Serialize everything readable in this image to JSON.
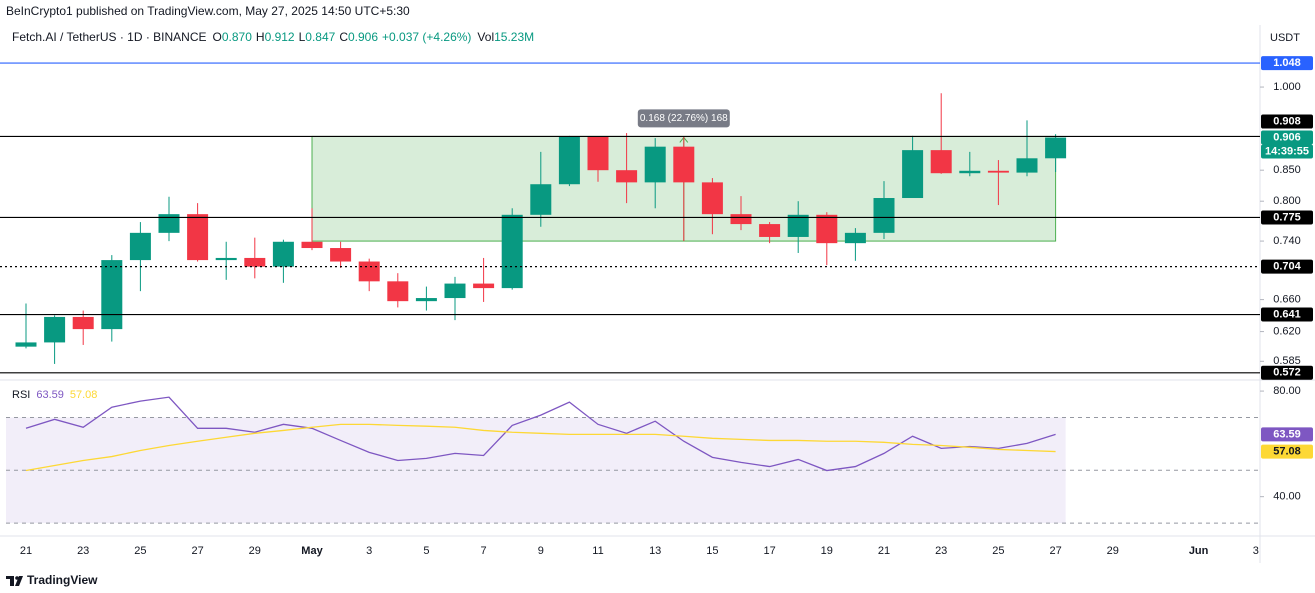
{
  "header": {
    "publisher": "BeInCrypto1 published on TradingView.com, May 27, 2025 14:50 UTC+5:30",
    "symbol": "Fetch.AI / TetherUS · 1D · BINANCE",
    "ohlc": [
      {
        "label": "O",
        "value": "0.870"
      },
      {
        "label": "H",
        "value": "0.912"
      },
      {
        "label": "L",
        "value": "0.847"
      },
      {
        "label": "C",
        "value": "0.906"
      }
    ],
    "change": "+0.037 (+4.26%)",
    "volume": {
      "label": "Vol",
      "value": "15.23M"
    }
  },
  "footer": {
    "brand": "TradingView"
  },
  "chart_data": [
    {
      "type": "candlestick",
      "currency": "USDT",
      "countdown": "14:39:55",
      "log_scale": true,
      "up_color": "#089981",
      "down_color": "#f23645",
      "categories": [
        "21",
        null,
        "23",
        null,
        "25",
        null,
        "27",
        null,
        "29",
        null,
        "May",
        null,
        "3",
        null,
        "5",
        null,
        "7",
        null,
        "9",
        null,
        "11",
        null,
        "13",
        null,
        "15",
        null,
        "17",
        null,
        "19",
        null,
        "21",
        null,
        "23",
        null,
        "25",
        null,
        "27",
        null,
        "29",
        null,
        null,
        "Jun",
        null,
        "3"
      ],
      "open": [
        0.602,
        0.607,
        0.638,
        0.623,
        0.713,
        0.752,
        0.78,
        0.713,
        0.716,
        0.704,
        0.739,
        0.73,
        0.711,
        0.684,
        0.658,
        0.662,
        0.681,
        0.675,
        0.779,
        0.827,
        0.907,
        0.85,
        0.83,
        0.89,
        0.83,
        0.78,
        0.765,
        0.746,
        0.779,
        0.737,
        0.752,
        0.805,
        0.884,
        0.845,
        0.849,
        0.846,
        0.87,
        null,
        null,
        null,
        null,
        null,
        null,
        null
      ],
      "high": [
        0.655,
        0.64,
        0.646,
        0.72,
        0.768,
        0.807,
        0.797,
        0.739,
        0.745,
        0.742,
        0.789,
        0.739,
        0.715,
        0.695,
        0.677,
        0.69,
        0.716,
        0.789,
        0.881,
        0.909,
        0.907,
        0.914,
        0.905,
        0.907,
        0.837,
        0.808,
        0.768,
        0.8,
        0.783,
        0.759,
        0.832,
        0.909,
        0.988,
        0.881,
        0.867,
        0.937,
        0.912,
        null,
        null,
        null,
        null,
        null,
        null,
        null
      ],
      "low": [
        0.6,
        0.582,
        0.604,
        0.608,
        0.671,
        0.74,
        0.711,
        0.686,
        0.688,
        0.682,
        0.727,
        0.702,
        0.671,
        0.65,
        0.646,
        0.634,
        0.657,
        0.673,
        0.761,
        0.824,
        0.831,
        0.797,
        0.789,
        0.74,
        0.75,
        0.756,
        0.737,
        0.723,
        0.706,
        0.712,
        0.743,
        0.805,
        0.844,
        0.84,
        0.794,
        0.84,
        0.847,
        null,
        null,
        null,
        null,
        null,
        null,
        null
      ],
      "close": [
        0.607,
        0.638,
        0.623,
        0.713,
        0.752,
        0.78,
        0.713,
        0.716,
        0.704,
        0.739,
        0.73,
        0.711,
        0.684,
        0.658,
        0.662,
        0.681,
        0.675,
        0.779,
        0.827,
        0.907,
        0.85,
        0.83,
        0.89,
        0.83,
        0.78,
        0.765,
        0.746,
        0.779,
        0.737,
        0.752,
        0.805,
        0.884,
        0.845,
        0.849,
        0.846,
        0.87,
        0.906,
        null,
        null,
        null,
        null,
        null,
        null,
        null
      ],
      "ylim": [
        0.564,
        1.129
      ],
      "yticks": [
        {
          "value": 0.585,
          "label": "0.585"
        },
        {
          "value": 0.62,
          "label": "0.620"
        },
        {
          "value": 0.66,
          "label": "0.660"
        },
        {
          "value": 0.74,
          "label": "0.740"
        },
        {
          "value": 0.8,
          "label": "0.800"
        },
        {
          "value": 0.85,
          "label": "0.850"
        },
        {
          "value": 1,
          "label": "1.000"
        }
      ],
      "levels": [
        {
          "value": 1.048,
          "color": "#2962ff",
          "dotted": false
        },
        {
          "value": 0.908,
          "color": "#000000",
          "dotted": false
        },
        {
          "value": 0.775,
          "color": "#000000",
          "dotted": false
        },
        {
          "value": 0.704,
          "color": "#000000",
          "dotted": true
        },
        {
          "value": 0.641,
          "color": "#000000",
          "dotted": false
        },
        {
          "value": 0.572,
          "color": "#000000",
          "dotted": false
        }
      ],
      "measure": {
        "label": "0.168 (22.76%) 168",
        "range": [
          0.74,
          0.908
        ],
        "color": "#4caf50"
      }
    },
    {
      "type": "line",
      "title": "RSI",
      "series": [
        {
          "color": "#7e57c2",
          "values": [
            65.9,
            69.3,
            66.3,
            73.9,
            76.2,
            77.7,
            65.9,
            65.9,
            64.4,
            67.4,
            65.9,
            61.3,
            56.8,
            53.7,
            54.5,
            56.4,
            55.6,
            67.0,
            70.9,
            75.8,
            67.4,
            64.0,
            68.6,
            61.0,
            54.9,
            53.0,
            51.4,
            54.1,
            49.9,
            51.4,
            56.4,
            62.9,
            58.3,
            59.0,
            58.3,
            60.2,
            63.59,
            null,
            null,
            null,
            null,
            null,
            null,
            null
          ]
        },
        {
          "color": "#fdd835",
          "values": [
            49.9,
            51.8,
            53.7,
            55.2,
            57.5,
            59.4,
            61.0,
            62.5,
            64.0,
            65.1,
            66.3,
            67.4,
            67.4,
            67.0,
            66.7,
            66.3,
            65.1,
            64.4,
            64.0,
            63.6,
            63.6,
            63.6,
            63.6,
            62.9,
            62.1,
            61.7,
            61.3,
            61.3,
            61.0,
            61.0,
            60.6,
            59.8,
            59.4,
            58.7,
            57.9,
            57.5,
            57.08,
            null,
            null,
            null,
            null,
            null,
            null,
            null
          ]
        }
      ],
      "ylim": [
        25.1,
        84.2
      ],
      "yticks": [
        {
          "value": 40,
          "label": "40.00"
        },
        {
          "value": 80,
          "label": "80.00"
        }
      ],
      "band": [
        30,
        70
      ],
      "midline": 50
    }
  ]
}
